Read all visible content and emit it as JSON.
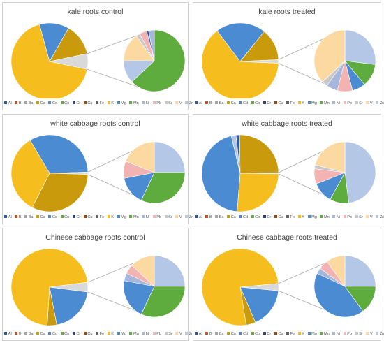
{
  "chart_data": [
    {
      "type": "pie",
      "subtype": "pie-of-pie",
      "title": "kale roots control",
      "categories": [
        "Al",
        "B",
        "Ba",
        "Ca",
        "Cd",
        "Co",
        "Cr",
        "Cu",
        "Fe",
        "K",
        "Mg",
        "Mn",
        "Ni",
        "Pb",
        "Sr",
        "V",
        "Zn"
      ],
      "main_pie": [
        {
          "label": "K",
          "value": 67.5
        },
        {
          "label": "Mg",
          "value": 12.5
        },
        {
          "label": "Ca",
          "value": 13.5
        },
        {
          "label": "Other",
          "value": 6.5
        }
      ],
      "secondary_pie": [
        {
          "label": "Mn",
          "value": 63
        },
        {
          "label": "Zn",
          "value": 12
        },
        {
          "label": "V",
          "value": 15
        },
        {
          "label": "Sr",
          "value": 2
        },
        {
          "label": "Pb",
          "value": 4
        },
        {
          "label": "Al",
          "value": 1
        },
        {
          "label": "Ni",
          "value": 3
        }
      ],
      "legend_position": "bottom"
    },
    {
      "type": "pie",
      "subtype": "pie-of-pie",
      "title": "kale roots treated",
      "categories": [
        "Al",
        "B",
        "Ba",
        "Ca",
        "Cd",
        "Co",
        "Cr",
        "Cu",
        "Fe",
        "K",
        "Mg",
        "Mn",
        "Ni",
        "Pb",
        "Sr",
        "V",
        "Zn"
      ],
      "main_pie": [
        {
          "label": "K",
          "value": 64
        },
        {
          "label": "Mg",
          "value": 21
        },
        {
          "label": "Ca",
          "value": 13.5
        },
        {
          "label": "Other",
          "value": 1.5
        }
      ],
      "secondary_pie": [
        {
          "label": "Zn",
          "value": 27
        },
        {
          "label": "Mn",
          "value": 12
        },
        {
          "label": "Mg",
          "value": 7
        },
        {
          "label": "Pb",
          "value": 8
        },
        {
          "label": "Ni",
          "value": 6
        },
        {
          "label": "Sr",
          "value": 3
        },
        {
          "label": "V",
          "value": 37
        }
      ],
      "legend_position": "bottom"
    },
    {
      "type": "pie",
      "subtype": "pie-of-pie",
      "title": "white cabbage roots control",
      "categories": [
        "Al",
        "B",
        "Ba",
        "Ca",
        "Cd",
        "Co",
        "Cr",
        "Cu",
        "Fe",
        "K",
        "Mg",
        "Mn",
        "Ni",
        "Pb",
        "Sr",
        "V",
        "Zn"
      ],
      "main_pie": [
        {
          "label": "Mg",
          "value": 33
        },
        {
          "label": "Other",
          "value": 1
        },
        {
          "label": "Ca",
          "value": 32
        },
        {
          "label": "K",
          "value": 34
        }
      ],
      "secondary_pie": [
        {
          "label": "Zn",
          "value": 25
        },
        {
          "label": "Mn",
          "value": 32
        },
        {
          "label": "Mg",
          "value": 15
        },
        {
          "label": "Pb",
          "value": 9
        },
        {
          "label": "V",
          "value": 19
        }
      ],
      "legend_position": "bottom"
    },
    {
      "type": "pie",
      "subtype": "pie-of-pie",
      "title": "white cabbage roots treated",
      "categories": [
        "Al",
        "B",
        "Ba",
        "Ca",
        "Cd",
        "Co",
        "Cr",
        "Cu",
        "Fe",
        "K",
        "Mg",
        "Mn",
        "Ni",
        "Pb",
        "Sr",
        "V",
        "Zn"
      ],
      "main_pie": [
        {
          "label": "Mg",
          "value": 45
        },
        {
          "label": "Zn",
          "value": 2
        },
        {
          "label": "Al",
          "value": 1.5
        },
        {
          "label": "Ca",
          "value": 25
        },
        {
          "label": "Other",
          "value": 0.5
        },
        {
          "label": "K",
          "value": 26
        }
      ],
      "secondary_pie": [
        {
          "label": "Zn",
          "value": 48
        },
        {
          "label": "Mn",
          "value": 10
        },
        {
          "label": "Mg",
          "value": 11
        },
        {
          "label": "Pb",
          "value": 8
        },
        {
          "label": "Sr",
          "value": 2
        },
        {
          "label": "V",
          "value": 21
        }
      ],
      "legend_position": "bottom"
    },
    {
      "type": "pie",
      "subtype": "pie-of-pie",
      "title": "Chinese cabbage roots control",
      "categories": [
        "Al",
        "B",
        "Ba",
        "Ca",
        "Cd",
        "Co",
        "Cr",
        "Cu",
        "Fe",
        "K",
        "Mg",
        "Mn",
        "Ni",
        "Pb",
        "Sr",
        "V",
        "Zn"
      ],
      "main_pie": [
        {
          "label": "Mg",
          "value": 20
        },
        {
          "label": "Ca",
          "value": 4
        },
        {
          "label": "K",
          "value": 72
        },
        {
          "label": "Other",
          "value": 4
        }
      ],
      "secondary_pie": [
        {
          "label": "Zn",
          "value": 25
        },
        {
          "label": "Mn",
          "value": 32
        },
        {
          "label": "Mg",
          "value": 21
        },
        {
          "label": "Ni",
          "value": 4
        },
        {
          "label": "Pb",
          "value": 5
        },
        {
          "label": "V",
          "value": 13
        }
      ],
      "legend_position": "bottom"
    },
    {
      "type": "pie",
      "subtype": "pie-of-pie",
      "title": "Chinese cabbage roots treated",
      "categories": [
        "Al",
        "B",
        "Ba",
        "Ca",
        "Cd",
        "Co",
        "Cr",
        "Cu",
        "Fe",
        "K",
        "Mg",
        "Mn",
        "Ni",
        "Pb",
        "Sr",
        "V",
        "Zn"
      ],
      "main_pie": [
        {
          "label": "Mg",
          "value": 17
        },
        {
          "label": "Ca",
          "value": 4
        },
        {
          "label": "K",
          "value": 76
        },
        {
          "label": "Other",
          "value": 3
        }
      ],
      "secondary_pie": [
        {
          "label": "Zn",
          "value": 25
        },
        {
          "label": "Mn",
          "value": 15
        },
        {
          "label": "Mg",
          "value": 42
        },
        {
          "label": "Ni",
          "value": 3
        },
        {
          "label": "Pb",
          "value": 5
        },
        {
          "label": "V",
          "value": 10
        }
      ],
      "legend_position": "bottom"
    }
  ],
  "colors": {
    "Al": "#2e5c9e",
    "B": "#c0502a",
    "Ba": "#a5a5a5",
    "Ca": "#c99a0c",
    "Cd": "#5d82c4",
    "Co": "#6aa54a",
    "Cr": "#264478",
    "Cu": "#9e480e",
    "Fe": "#636363",
    "K": "#f5bd1e",
    "Mg": "#4a8bd1",
    "Mn": "#5eab3e",
    "Ni": "#a7b7dc",
    "Pb": "#f4b3b3",
    "Sr": "#c8c8c8",
    "V": "#fcd9a0",
    "Zn": "#b4c7e7",
    "Other": "#d9d9d9"
  }
}
